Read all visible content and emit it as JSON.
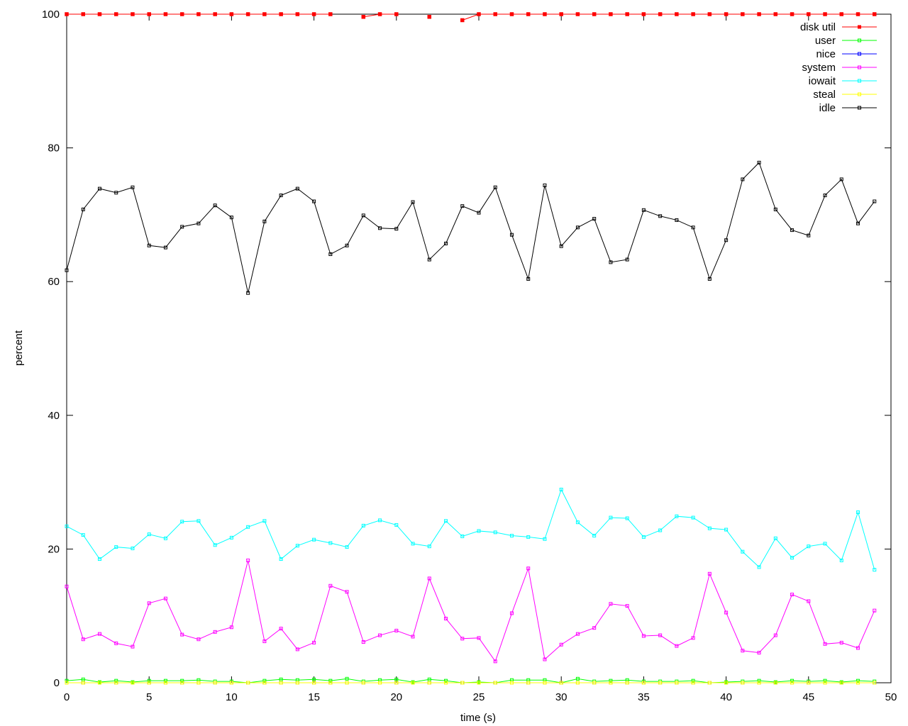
{
  "chart_data": {
    "type": "line",
    "title": "",
    "xlabel": "time (s)",
    "ylabel": "percent",
    "xlim": [
      0,
      50
    ],
    "ylim": [
      0,
      100
    ],
    "xticks": [
      "0",
      "5",
      "10",
      "15",
      "20",
      "25",
      "30",
      "35",
      "40",
      "45",
      "50"
    ],
    "yticks": [
      "0",
      "20",
      "40",
      "60",
      "80",
      "100"
    ],
    "grid": false,
    "legend_position": "top-right",
    "x": [
      0,
      1,
      2,
      3,
      4,
      5,
      6,
      7,
      8,
      9,
      10,
      11,
      12,
      13,
      14,
      15,
      16,
      17,
      18,
      19,
      20,
      21,
      22,
      23,
      24,
      25,
      26,
      27,
      28,
      29,
      30,
      31,
      32,
      33,
      34,
      35,
      36,
      37,
      38,
      39,
      40,
      41,
      42,
      43,
      44,
      45,
      46,
      47,
      48,
      49
    ],
    "series": [
      {
        "name": "disk util",
        "color": "#ff0000",
        "marker": "filled-square",
        "values": [
          100,
          100,
          100,
          100,
          100,
          100,
          100,
          100,
          100,
          100,
          100,
          100,
          100,
          100,
          100,
          100,
          100,
          null,
          99.6,
          100,
          100,
          null,
          99.6,
          null,
          99.1,
          100,
          100,
          100,
          100,
          100,
          100,
          100,
          100,
          100,
          100,
          100,
          100,
          100,
          100,
          100,
          100,
          100,
          100,
          100,
          100,
          100,
          100,
          100,
          100,
          100
        ]
      },
      {
        "name": "user",
        "color": "#00ff00",
        "marker": "open-square",
        "values": [
          0.3,
          0.5,
          0.1,
          0.3,
          0.1,
          0.3,
          0.3,
          0.3,
          0.4,
          0.2,
          0.2,
          0.0,
          0.3,
          0.5,
          0.4,
          0.5,
          0.3,
          0.6,
          0.2,
          0.4,
          0.5,
          0.1,
          0.5,
          0.3,
          0.0,
          0.1,
          0.0,
          0.4,
          0.4,
          0.4,
          0.0,
          0.6,
          0.2,
          0.3,
          0.4,
          0.2,
          0.2,
          0.2,
          0.3,
          0.0,
          0.1,
          0.2,
          0.3,
          0.1,
          0.3,
          0.2,
          0.3,
          0.1,
          0.3,
          0.2
        ]
      },
      {
        "name": "nice",
        "color": "#0000ff",
        "marker": "open-square",
        "values": [
          0,
          0,
          0,
          0,
          0,
          0,
          0,
          0,
          0,
          0,
          0,
          0,
          0,
          0,
          0,
          0,
          0,
          0,
          0,
          0,
          0,
          0,
          0,
          0,
          0,
          0,
          0,
          0,
          0,
          0,
          0,
          0,
          0,
          0,
          0,
          0,
          0,
          0,
          0,
          0,
          0,
          0,
          0,
          0,
          0,
          0,
          0,
          0,
          0,
          0
        ]
      },
      {
        "name": "system",
        "color": "#ff00ff",
        "marker": "open-square",
        "values": [
          14.4,
          6.5,
          7.3,
          5.9,
          5.4,
          11.9,
          12.6,
          7.2,
          6.5,
          7.6,
          8.3,
          18.3,
          6.2,
          8.1,
          5.0,
          6.0,
          14.5,
          13.6,
          6.1,
          7.1,
          7.8,
          6.9,
          15.6,
          9.6,
          6.6,
          6.7,
          3.2,
          10.4,
          17.1,
          3.5,
          5.7,
          7.3,
          8.2,
          11.8,
          11.5,
          7.0,
          7.1,
          5.5,
          6.7,
          16.3,
          10.5,
          4.8,
          4.5,
          7.1,
          13.2,
          12.2,
          5.8,
          6.0,
          5.2,
          10.8
        ]
      },
      {
        "name": "iowait",
        "color": "#00ffff",
        "marker": "open-square",
        "values": [
          23.4,
          22.1,
          18.5,
          20.3,
          20.1,
          22.2,
          21.6,
          24.1,
          24.2,
          20.6,
          21.7,
          23.3,
          24.2,
          18.5,
          20.5,
          21.4,
          20.9,
          20.3,
          23.5,
          24.3,
          23.6,
          20.8,
          20.4,
          24.2,
          21.9,
          22.7,
          22.5,
          22.0,
          21.8,
          21.5,
          28.9,
          24.0,
          22.0,
          24.7,
          24.6,
          21.8,
          22.8,
          24.9,
          24.7,
          23.1,
          22.9,
          19.6,
          17.3,
          21.6,
          18.7,
          20.4,
          20.8,
          18.3,
          25.5,
          16.9
        ]
      },
      {
        "name": "steal",
        "color": "#ffff00",
        "marker": "open-square",
        "values": [
          0,
          0,
          0,
          0,
          0,
          0,
          0,
          0,
          0,
          0,
          0,
          0,
          0,
          0,
          0,
          0,
          0,
          0,
          0,
          0,
          0,
          0,
          0,
          0,
          0,
          0,
          0,
          0,
          0,
          0,
          0,
          0,
          0,
          0,
          0,
          0,
          0,
          0,
          0,
          0,
          0,
          0,
          0,
          0,
          0,
          0,
          0,
          0,
          0,
          0
        ]
      },
      {
        "name": "idle",
        "color": "#000000",
        "marker": "open-square",
        "values": [
          61.7,
          70.8,
          73.9,
          73.3,
          74.1,
          65.4,
          65.1,
          68.2,
          68.7,
          71.4,
          69.6,
          58.3,
          69.0,
          72.9,
          73.9,
          72.0,
          64.1,
          65.4,
          69.9,
          68.0,
          67.9,
          71.9,
          63.3,
          65.7,
          71.3,
          70.3,
          74.1,
          67.0,
          60.4,
          74.4,
          65.3,
          68.1,
          69.4,
          62.9,
          63.3,
          70.7,
          69.8,
          69.2,
          68.1,
          60.4,
          66.2,
          75.3,
          77.8,
          70.8,
          67.7,
          66.9,
          72.9,
          75.3,
          68.7,
          72.0
        ]
      }
    ]
  }
}
